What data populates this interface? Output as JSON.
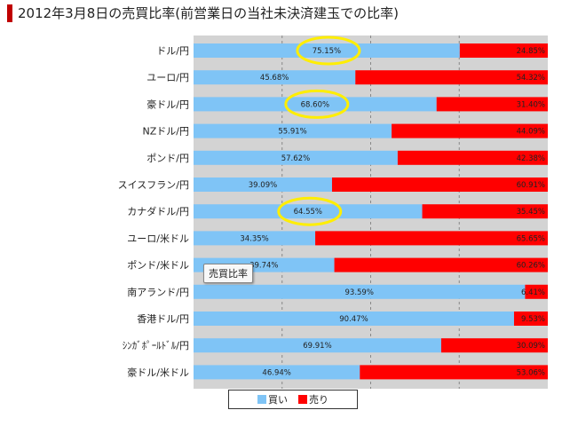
{
  "title": "2012年3月8日の売買比率(前営業日の当社未決済建玉での比率)",
  "tooltip": "売買比率",
  "colors": {
    "buy": "#7fc4f6",
    "sell": "#ff0000",
    "track": "#d3d3d3",
    "highlight": "#ffee00"
  },
  "chart_data": {
    "type": "bar",
    "orientation": "horizontal",
    "stacked": true,
    "title": "2012年3月8日の売買比率(前営業日の当社未決済建玉での比率)",
    "xlim": [
      0,
      100
    ],
    "grid": true,
    "legend_placement": "bottom",
    "categories": [
      "ドル/円",
      "ユーロ/円",
      "豪ドル/円",
      "NZドル/円",
      "ポンド/円",
      "スイスフラン/円",
      "カナダドル/円",
      "ユーロ/米ドル",
      "ポンド/米ドル",
      "南アランド/円",
      "香港ドル/円",
      "ｼﾝｶﾞﾎﾟｰﾙﾄﾞﾙ/円",
      "豪ドル/米ドル"
    ],
    "series": [
      {
        "name": "買い",
        "values": [
          75.15,
          45.68,
          68.6,
          55.91,
          57.62,
          39.09,
          64.55,
          34.35,
          39.74,
          93.59,
          90.47,
          69.91,
          46.94
        ],
        "labels": [
          "75.15%",
          "45.68%",
          "68.60%",
          "55.91%",
          "57.62%",
          "39.09%",
          "64.55%",
          "34.35%",
          "39.74%",
          "93.59%",
          "90.47%",
          "69.91%",
          "46.94%"
        ]
      },
      {
        "name": "売り",
        "values": [
          24.85,
          54.32,
          31.4,
          44.09,
          42.38,
          60.91,
          35.45,
          65.65,
          60.26,
          6.41,
          9.53,
          30.09,
          53.06
        ],
        "labels": [
          "24.85%",
          "54.32%",
          "31.40%",
          "44.09%",
          "42.38%",
          "60.91%",
          "35.45%",
          "65.65%",
          "60.26%",
          "6.41%",
          "9.53%",
          "30.09%",
          "53.06%"
        ]
      }
    ],
    "highlighted_categories": [
      "ドル/円",
      "豪ドル/円",
      "カナダドル/円"
    ]
  }
}
